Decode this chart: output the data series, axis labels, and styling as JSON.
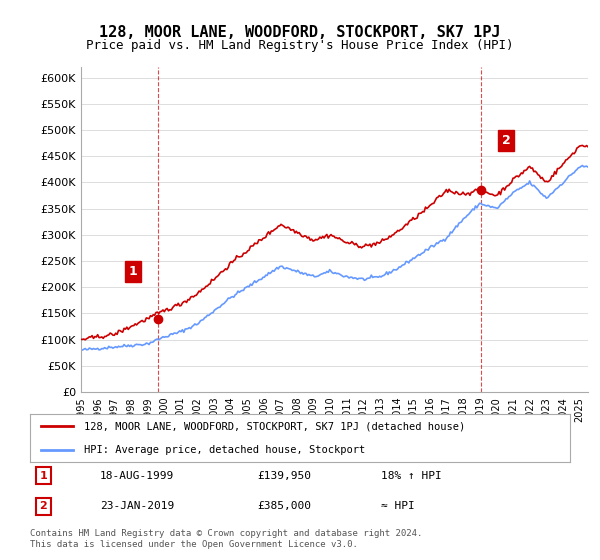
{
  "title": "128, MOOR LANE, WOODFORD, STOCKPORT, SK7 1PJ",
  "subtitle": "Price paid vs. HM Land Registry's House Price Index (HPI)",
  "ylabel_ticks": [
    "£0",
    "£50K",
    "£100K",
    "£150K",
    "£200K",
    "£250K",
    "£300K",
    "£350K",
    "£400K",
    "£450K",
    "£500K",
    "£550K",
    "£600K"
  ],
  "ytick_values": [
    0,
    50000,
    100000,
    150000,
    200000,
    250000,
    300000,
    350000,
    400000,
    450000,
    500000,
    550000,
    600000
  ],
  "ylim": [
    0,
    620000
  ],
  "xlim_start": 1995.0,
  "xlim_end": 2025.5,
  "xtick_labels": [
    "1995",
    "1996",
    "1997",
    "1998",
    "1999",
    "2000",
    "2001",
    "2002",
    "2003",
    "2004",
    "2005",
    "2006",
    "2007",
    "2008",
    "2009",
    "2010",
    "2011",
    "2012",
    "2013",
    "2014",
    "2015",
    "2016",
    "2017",
    "2018",
    "2019",
    "2020",
    "2021",
    "2022",
    "2023",
    "2024",
    "2025"
  ],
  "sale1_x": 1999.63,
  "sale1_y": 139950,
  "sale1_label": "1",
  "sale2_x": 2019.06,
  "sale2_y": 385000,
  "sale2_label": "2",
  "hpi_color": "#6699ff",
  "price_color": "#cc0000",
  "marker_color": "#cc0000",
  "annotation_box_color": "#cc0000",
  "legend_label_property": "128, MOOR LANE, WOODFORD, STOCKPORT, SK7 1PJ (detached house)",
  "legend_label_hpi": "HPI: Average price, detached house, Stockport",
  "table_row1": [
    "1",
    "18-AUG-1999",
    "£139,950",
    "18% ↑ HPI"
  ],
  "table_row2": [
    "2",
    "23-JAN-2019",
    "£385,000",
    "≈ HPI"
  ],
  "footnote": "Contains HM Land Registry data © Crown copyright and database right 2024.\nThis data is licensed under the Open Government Licence v3.0.",
  "background_color": "#ffffff",
  "grid_color": "#dddddd"
}
